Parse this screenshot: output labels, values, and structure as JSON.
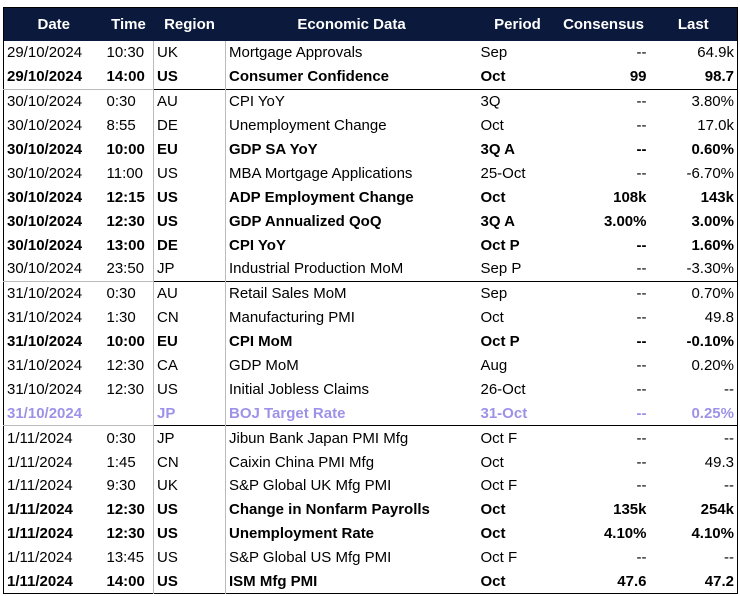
{
  "table": {
    "header": [
      "Date",
      "Time",
      "Region",
      "Economic Data",
      "Period",
      "Consensus",
      "Last"
    ],
    "header_color": "#0b1a3c",
    "groups": [
      {
        "rows": [
          {
            "cells": [
              "29/10/2024",
              "10:30",
              "UK",
              "Mortgage Approvals",
              "Sep",
              "--",
              "64.9k"
            ]
          },
          {
            "cells": [
              "29/10/2024",
              "14:00",
              "US",
              "Consumer Confidence",
              "Oct",
              "99",
              "98.7"
            ],
            "bold": true
          }
        ]
      },
      {
        "rows": [
          {
            "cells": [
              "30/10/2024",
              "0:30",
              "AU",
              "CPI YoY",
              "3Q",
              "--",
              "3.80%"
            ]
          },
          {
            "cells": [
              "30/10/2024",
              "8:55",
              "DE",
              "Unemployment Change",
              "Oct",
              "--",
              "17.0k"
            ]
          },
          {
            "cells": [
              "30/10/2024",
              "10:00",
              "EU",
              "GDP SA YoY",
              "3Q A",
              "--",
              "0.60%"
            ],
            "bold": true
          },
          {
            "cells": [
              "30/10/2024",
              "11:00",
              "US",
              "MBA Mortgage Applications",
              "25-Oct",
              "--",
              "-6.70%"
            ]
          },
          {
            "cells": [
              "30/10/2024",
              "12:15",
              "US",
              "ADP Employment Change",
              "Oct",
              "108k",
              "143k"
            ],
            "bold": true
          },
          {
            "cells": [
              "30/10/2024",
              "12:30",
              "US",
              "GDP Annualized QoQ",
              "3Q A",
              "3.00%",
              "3.00%"
            ],
            "bold": true
          },
          {
            "cells": [
              "30/10/2024",
              "13:00",
              "DE",
              "CPI YoY",
              "Oct P",
              "--",
              "1.60%"
            ],
            "bold": true
          },
          {
            "cells": [
              "30/10/2024",
              "23:50",
              "JP",
              "Industrial Production MoM",
              "Sep P",
              "--",
              "-3.30%"
            ]
          }
        ]
      },
      {
        "rows": [
          {
            "cells": [
              "31/10/2024",
              "0:30",
              "AU",
              "Retail Sales MoM",
              "Sep",
              "--",
              "0.70%"
            ]
          },
          {
            "cells": [
              "31/10/2024",
              "1:30",
              "CN",
              "Manufacturing PMI",
              "Oct",
              "--",
              "49.8"
            ]
          },
          {
            "cells": [
              "31/10/2024",
              "10:00",
              "EU",
              "CPI MoM",
              "Oct P",
              "--",
              "-0.10%"
            ],
            "bold": true
          },
          {
            "cells": [
              "31/10/2024",
              "12:30",
              "CA",
              "GDP MoM",
              "Aug",
              "--",
              "0.20%"
            ]
          },
          {
            "cells": [
              "31/10/2024",
              "12:30",
              "US",
              "Initial Jobless Claims",
              "26-Oct",
              "--",
              "--"
            ]
          },
          {
            "cells": [
              "31/10/2024",
              null,
              "JP",
              "BOJ Target Rate",
              "31-Oct",
              "--",
              "0.25%"
            ],
            "bold": true,
            "color": "#9e92e8"
          }
        ]
      },
      {
        "rows": [
          {
            "cells": [
              "1/11/2024",
              "0:30",
              "JP",
              "Jibun Bank Japan PMI Mfg",
              "Oct F",
              "--",
              "--"
            ]
          },
          {
            "cells": [
              "1/11/2024",
              "1:45",
              "CN",
              "Caixin China PMI Mfg",
              "Oct",
              "--",
              "49.3"
            ]
          },
          {
            "cells": [
              "1/11/2024",
              "9:30",
              "UK",
              "S&P Global UK Mfg PMI",
              "Oct F",
              "--",
              "--"
            ]
          },
          {
            "cells": [
              "1/11/2024",
              "12:30",
              "US",
              "Change in Nonfarm Payrolls",
              "Oct",
              "135k",
              "254k"
            ],
            "bold": true
          },
          {
            "cells": [
              "1/11/2024",
              "12:30",
              "US",
              "Unemployment Rate",
              "Oct",
              "4.10%",
              "4.10%"
            ],
            "bold": true
          },
          {
            "cells": [
              "1/11/2024",
              "13:45",
              "US",
              "S&P Global US Mfg PMI",
              "Oct F",
              "--",
              "--"
            ]
          },
          {
            "cells": [
              "1/11/2024",
              "14:00",
              "US",
              "ISM Mfg PMI",
              "Oct",
              "47.6",
              "47.2"
            ],
            "bold": true
          }
        ]
      }
    ]
  }
}
